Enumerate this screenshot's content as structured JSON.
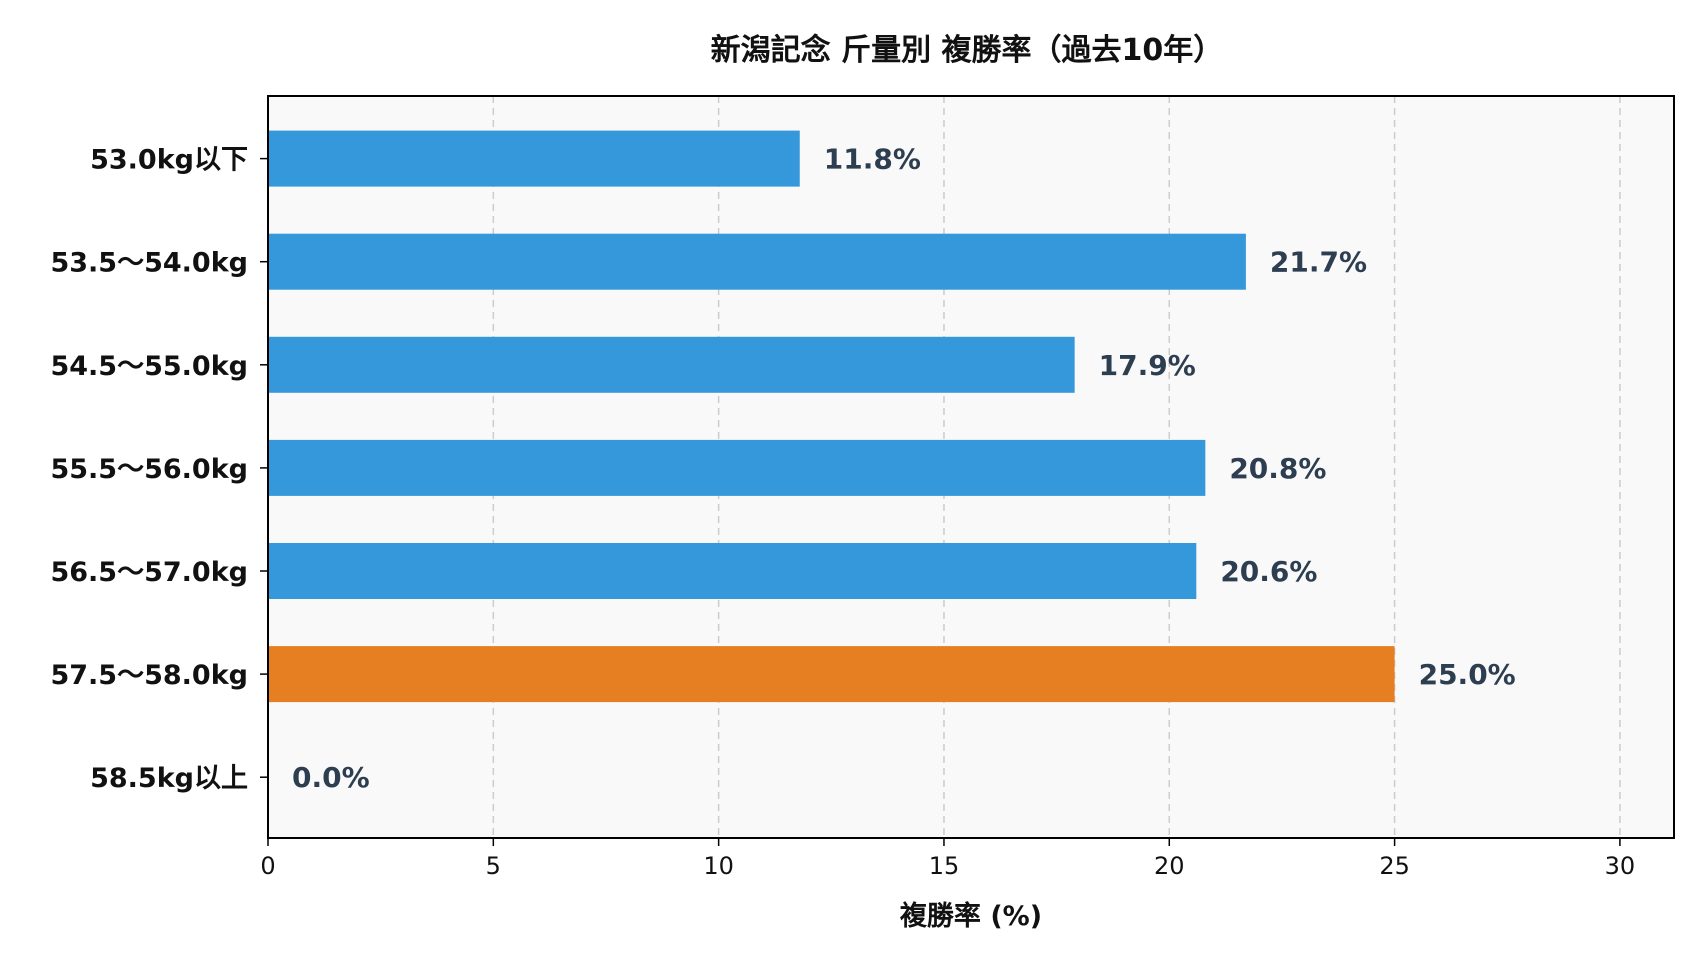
{
  "chart_data": {
    "type": "bar",
    "orientation": "horizontal",
    "title": "新潟記念 斤量別 複勝率（過去10年）",
    "xlabel": "複勝率 (%)",
    "ylabel": "",
    "xlim": [
      0,
      31.2
    ],
    "x_ticks": [
      0,
      5,
      10,
      15,
      20,
      25,
      30
    ],
    "grid": "x, dashed",
    "categories": [
      "53.0kg以下",
      "53.5〜54.0kg",
      "54.5〜55.0kg",
      "55.5〜56.0kg",
      "56.5〜57.0kg",
      "57.5〜58.0kg",
      "58.5kg以上"
    ],
    "values": [
      11.8,
      21.7,
      17.9,
      20.8,
      20.6,
      25.0,
      0.0
    ],
    "data_labels": [
      "11.8%",
      "21.7%",
      "17.9%",
      "20.8%",
      "20.6%",
      "25.0%",
      "0.0%"
    ],
    "colors": {
      "default_bar": "#3498db",
      "highlight_bar": "#e67e22",
      "plot_background": "#f9f9f9",
      "grid": "#cccccc",
      "data_label": "#2c3e50"
    },
    "highlight_index": 5
  }
}
